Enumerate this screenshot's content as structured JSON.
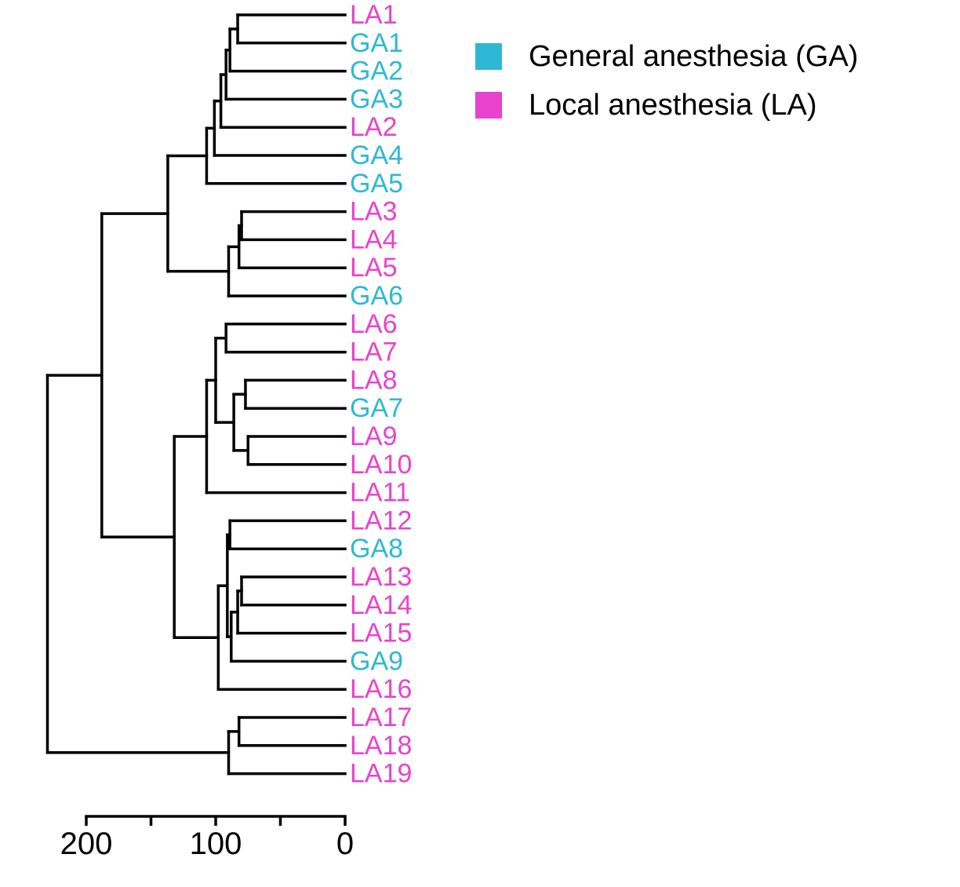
{
  "chart_data": {
    "type": "dendrogram",
    "orientation": "leaves-right",
    "leaves": [
      {
        "label": "LA1",
        "group": "LA"
      },
      {
        "label": "GA1",
        "group": "GA"
      },
      {
        "label": "GA2",
        "group": "GA"
      },
      {
        "label": "GA3",
        "group": "GA"
      },
      {
        "label": "LA2",
        "group": "LA"
      },
      {
        "label": "GA4",
        "group": "GA"
      },
      {
        "label": "GA5",
        "group": "GA"
      },
      {
        "label": "LA3",
        "group": "LA"
      },
      {
        "label": "LA4",
        "group": "LA"
      },
      {
        "label": "LA5",
        "group": "LA"
      },
      {
        "label": "GA6",
        "group": "GA"
      },
      {
        "label": "LA6",
        "group": "LA"
      },
      {
        "label": "LA7",
        "group": "LA"
      },
      {
        "label": "LA8",
        "group": "LA"
      },
      {
        "label": "GA7",
        "group": "GA"
      },
      {
        "label": "LA9",
        "group": "LA"
      },
      {
        "label": "LA10",
        "group": "LA"
      },
      {
        "label": "LA11",
        "group": "LA"
      },
      {
        "label": "LA12",
        "group": "LA"
      },
      {
        "label": "GA8",
        "group": "GA"
      },
      {
        "label": "LA13",
        "group": "LA"
      },
      {
        "label": "LA14",
        "group": "LA"
      },
      {
        "label": "LA15",
        "group": "LA"
      },
      {
        "label": "GA9",
        "group": "GA"
      },
      {
        "label": "LA16",
        "group": "LA"
      },
      {
        "label": "LA17",
        "group": "LA"
      },
      {
        "label": "LA18",
        "group": "LA"
      },
      {
        "label": "LA19",
        "group": "LA"
      }
    ],
    "merges": [
      {
        "id": "m1",
        "children": [
          "LA1",
          "GA1"
        ],
        "height": 83
      },
      {
        "id": "m2",
        "children": [
          "m1",
          "GA2"
        ],
        "height": 89
      },
      {
        "id": "m3",
        "children": [
          "m2",
          "GA3"
        ],
        "height": 92
      },
      {
        "id": "m4",
        "children": [
          "m3",
          "LA2"
        ],
        "height": 96
      },
      {
        "id": "m5",
        "children": [
          "m4",
          "GA4"
        ],
        "height": 101
      },
      {
        "id": "m6",
        "children": [
          "m5",
          "GA5"
        ],
        "height": 107
      },
      {
        "id": "m7",
        "children": [
          "LA3",
          "LA4"
        ],
        "height": 80
      },
      {
        "id": "m8",
        "children": [
          "m7",
          "LA5"
        ],
        "height": 82
      },
      {
        "id": "m9",
        "children": [
          "m8",
          "GA6"
        ],
        "height": 90
      },
      {
        "id": "m10",
        "children": [
          "m6",
          "m9"
        ],
        "height": 137
      },
      {
        "id": "m11",
        "children": [
          "LA6",
          "LA7"
        ],
        "height": 92
      },
      {
        "id": "m12",
        "children": [
          "LA8",
          "GA7"
        ],
        "height": 77
      },
      {
        "id": "m13",
        "children": [
          "LA9",
          "LA10"
        ],
        "height": 75
      },
      {
        "id": "m14",
        "children": [
          "m12",
          "m13"
        ],
        "height": 86
      },
      {
        "id": "m15",
        "children": [
          "m11",
          "m14"
        ],
        "height": 100
      },
      {
        "id": "m16",
        "children": [
          "m15",
          "LA11"
        ],
        "height": 107
      },
      {
        "id": "m17",
        "children": [
          "LA12",
          "GA8"
        ],
        "height": 89
      },
      {
        "id": "m18",
        "children": [
          "LA13",
          "LA14"
        ],
        "height": 80
      },
      {
        "id": "m19",
        "children": [
          "m18",
          "LA15"
        ],
        "height": 83
      },
      {
        "id": "m20",
        "children": [
          "m19",
          "GA9"
        ],
        "height": 88
      },
      {
        "id": "m21",
        "children": [
          "m17",
          "m20"
        ],
        "height": 91
      },
      {
        "id": "m22",
        "children": [
          "m21",
          "LA16"
        ],
        "height": 98
      },
      {
        "id": "m23",
        "children": [
          "m16",
          "m22"
        ],
        "height": 132
      },
      {
        "id": "m24",
        "children": [
          "m10",
          "m23"
        ],
        "height": 188
      },
      {
        "id": "m25",
        "children": [
          "LA17",
          "LA18"
        ],
        "height": 82
      },
      {
        "id": "m26",
        "children": [
          "m25",
          "LA19"
        ],
        "height": 90
      },
      {
        "id": "m27",
        "children": [
          "m24",
          "m26"
        ],
        "height": 230
      }
    ],
    "axis": {
      "xlim": [
        0,
        200
      ],
      "ticks": [
        200,
        150,
        100,
        50,
        0
      ],
      "tick_labels": [
        {
          "value": 200,
          "label": "200"
        },
        {
          "value": 100,
          "label": "100"
        },
        {
          "value": 0,
          "label": "0"
        }
      ],
      "xlabel": "",
      "reversed": true
    },
    "grid": false,
    "legend": {
      "placement": "top-right",
      "entries": [
        {
          "key": "GA",
          "label": "General anesthesia (GA)",
          "color": "#2fb8d4"
        },
        {
          "key": "LA",
          "label": "Local anesthesia (LA)",
          "color": "#e843cc"
        }
      ]
    }
  }
}
